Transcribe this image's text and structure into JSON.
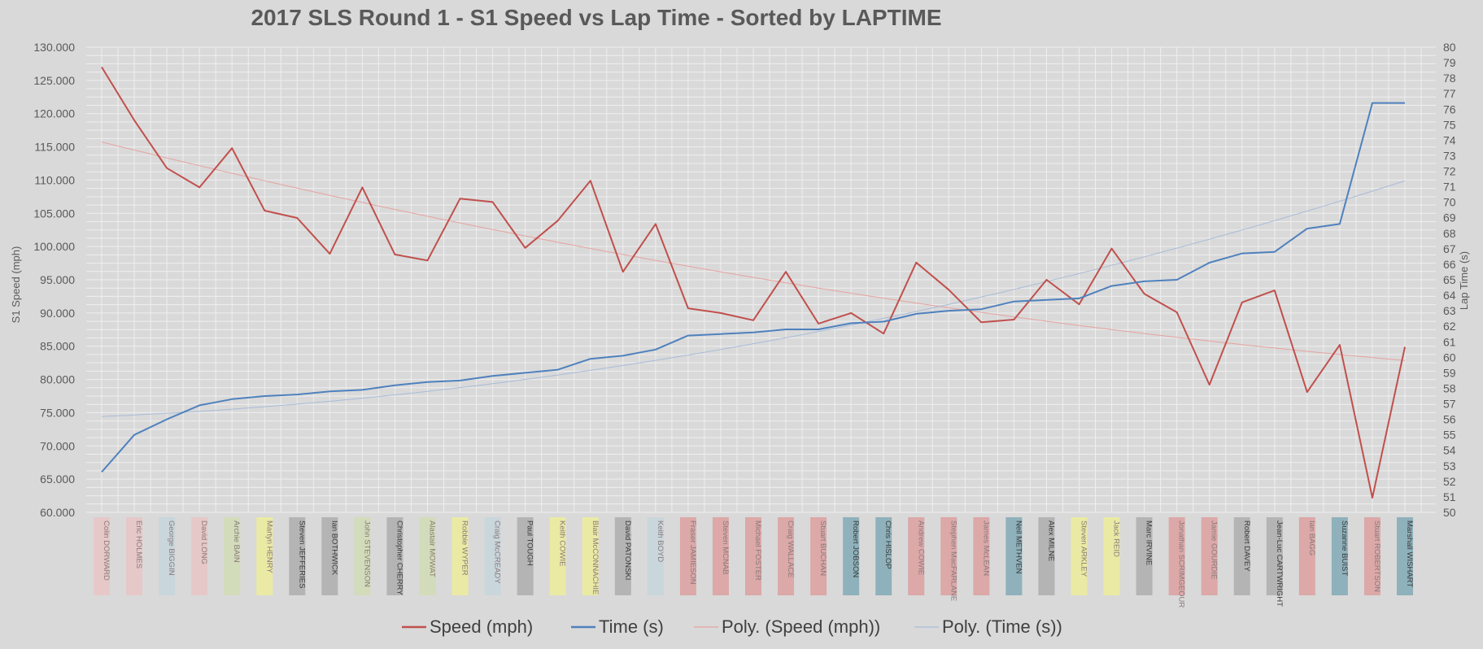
{
  "chart_data": {
    "type": "line",
    "title": "2017 SLS Round 1 - S1 Speed vs Lap Time - Sorted by LAPTIME",
    "ylabel_left": "S1 Speed (mph)",
    "ylabel_right": "Lap Time (s)",
    "ylim_left": [
      60,
      130
    ],
    "ylim_right": [
      50,
      80
    ],
    "grid": true,
    "legend_position": "bottom",
    "categories": [
      "Colin DORWARD",
      "Eric HOLMES",
      "George BIGGIN",
      "David LONG",
      "Archie BAIN",
      "Martyn HENRY",
      "Steven JEFFERIES",
      "Ian BOTHWICK",
      "John STEVENSON",
      "Christopher CHERRY",
      "Alastair MOWAT",
      "Robbie WYPER",
      "Craig McCREADY",
      "Paul TOUGH",
      "Keith COWIE",
      "Blair McCONNACHIE",
      "David PATONSKI",
      "Keith BOYD",
      "Fraser JAMIESON",
      "Steven MCNAB",
      "Michael FOSTER",
      "Craig WALLACE",
      "Stuart BUCHAN",
      "Robert JOBSON",
      "Chris HISLOP",
      "Andrew COWIE",
      "Stephen MacFARLANE",
      "James McLEAN",
      "Neil METHVEN",
      "Alex MILNE",
      "Steven ARKLEY",
      "Jack REID",
      "Marc IRVINE",
      "Jonathan SCRIMGEOUR",
      "Jamie GOURDIE",
      "Robert DAVEY",
      "Jean-Luc CARTWRIGHT",
      "Ian BAGG",
      "Suzanne BUIST",
      "Stuart ROBERTSON",
      "Marshall WISHART"
    ],
    "category_colors": [
      "#e6c8c8",
      "#e6c8c8",
      "#c9d6dc",
      "#e6c8c8",
      "#d2dcba",
      "#eaeaa4",
      "#b4b4b4",
      "#b4b4b4",
      "#d2dcba",
      "#b4b4b4",
      "#d2dcba",
      "#eaeaa4",
      "#c9d6dc",
      "#b4b4b4",
      "#eaeaa4",
      "#eaeaa4",
      "#b4b4b4",
      "#c9d6dc",
      "#dca8a8",
      "#dca8a8",
      "#dca8a8",
      "#dca8a8",
      "#dca8a8",
      "#8fb1bb",
      "#8fb1bb",
      "#dca8a8",
      "#dca8a8",
      "#dca8a8",
      "#8fb1bb",
      "#b4b4b4",
      "#eaeaa4",
      "#eaeaa4",
      "#b4b4b4",
      "#dca8a8",
      "#dca8a8",
      "#b4b4b4",
      "#b4b4b4",
      "#dca8a8",
      "#8fb1bb",
      "#dca8a8",
      "#8fb1bb"
    ],
    "series": [
      {
        "name": "Speed (mph)",
        "axis": "left",
        "color": "#c0504d",
        "values": [
          127,
          119,
          111.8,
          108.9,
          114.8,
          105.4,
          104.3,
          98.9,
          108.9,
          98.8,
          97.9,
          107.2,
          106.7,
          99.8,
          103.9,
          109.9,
          96.2,
          103.4,
          90.7,
          90.0,
          88.9,
          96.2,
          88.4,
          90.0,
          86.9,
          97.6,
          93.5,
          88.6,
          89.0,
          95.0,
          91.3,
          99.7,
          92.9,
          90.1,
          79.2,
          91.6,
          93.4,
          78.1,
          85.2,
          62.2,
          84.9
        ]
      },
      {
        "name": "Time (s)",
        "axis": "right",
        "color": "#4f81bd",
        "values": [
          52.6,
          55.0,
          56.0,
          56.9,
          57.3,
          57.5,
          57.6,
          57.8,
          57.9,
          58.2,
          58.4,
          58.5,
          58.8,
          59.0,
          59.2,
          59.9,
          60.1,
          60.5,
          61.4,
          61.5,
          61.6,
          61.8,
          61.8,
          62.2,
          62.3,
          62.8,
          63.0,
          63.1,
          63.6,
          63.7,
          63.8,
          64.6,
          64.9,
          65.0,
          66.1,
          66.7,
          66.8,
          68.3,
          68.6,
          76.4,
          76.4
        ]
      },
      {
        "name": "Poly. (Speed (mph))",
        "axis": "left",
        "color": "#e6a3a1",
        "trendline_of": "Speed (mph)"
      },
      {
        "name": "Poly. (Time (s))",
        "axis": "right",
        "color": "#a9bcd8",
        "trendline_of": "Time (s)"
      }
    ]
  }
}
